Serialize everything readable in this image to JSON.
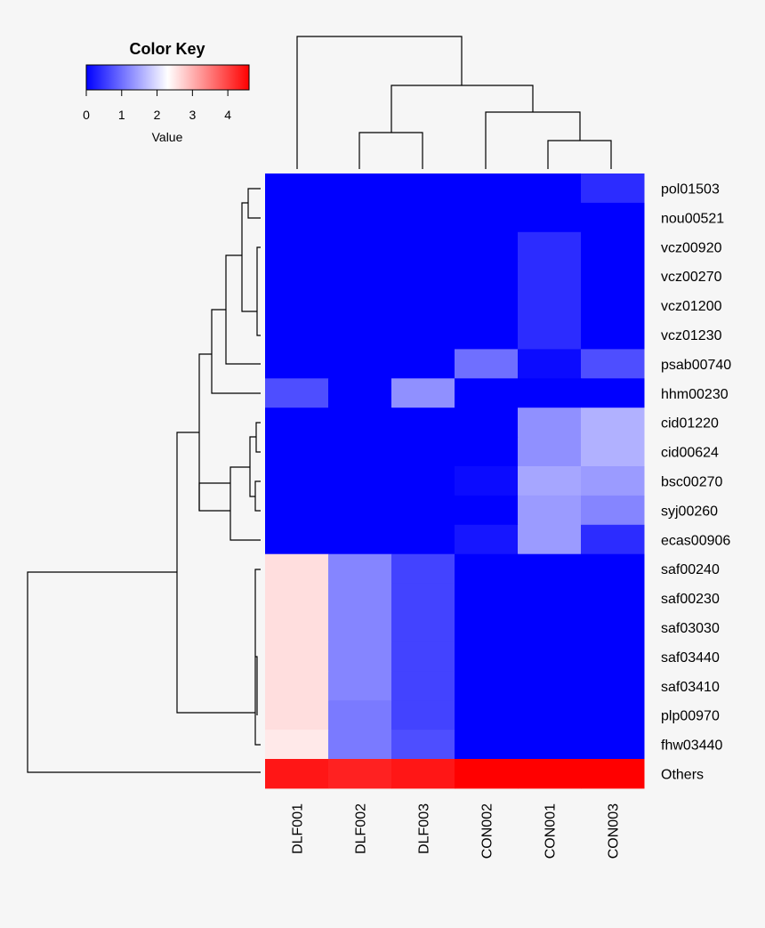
{
  "chart_data": {
    "type": "heatmap",
    "title": "",
    "color_key": {
      "title": "Color Key",
      "xlabel": "Value",
      "ticks": [
        0,
        1,
        2,
        3,
        4
      ],
      "range": [
        0,
        4.6
      ],
      "low_color": "#0000ff",
      "mid_color": "#ffffff",
      "high_color": "#ff0000"
    },
    "columns": [
      "DLF001",
      "DLF002",
      "DLF003",
      "CON002",
      "CON001",
      "CON003"
    ],
    "rows": [
      "pol01503",
      "nou00521",
      "vcz00920",
      "vcz00270",
      "vcz01200",
      "vcz01230",
      "psab00740",
      "hhm00230",
      "cid01220",
      "cid00624",
      "bsc00270",
      "syj00260",
      "ecas00906",
      "saf00240",
      "saf00230",
      "saf03030",
      "saf03440",
      "saf03410",
      "plp00970",
      "fhw03440",
      "Others"
    ],
    "values": [
      [
        0,
        0,
        0,
        0,
        0,
        0.4
      ],
      [
        0,
        0,
        0,
        0,
        0,
        0
      ],
      [
        0,
        0,
        0,
        0,
        0.4,
        0
      ],
      [
        0,
        0,
        0,
        0,
        0.4,
        0
      ],
      [
        0,
        0,
        0,
        0,
        0.4,
        0
      ],
      [
        0,
        0,
        0,
        0,
        0.4,
        0
      ],
      [
        0,
        0,
        0,
        1.0,
        0.1,
        0.7
      ],
      [
        0.7,
        0,
        1.3,
        0,
        0,
        0
      ],
      [
        0,
        0,
        0,
        0,
        1.3,
        1.6
      ],
      [
        0,
        0,
        0,
        0,
        1.3,
        1.6
      ],
      [
        0,
        0,
        0,
        0.1,
        1.5,
        1.4
      ],
      [
        0,
        0,
        0,
        0,
        1.4,
        1.2
      ],
      [
        0,
        0,
        0,
        0.2,
        1.4,
        0.4
      ],
      [
        2.6,
        1.2,
        0.6,
        0,
        0,
        0
      ],
      [
        2.6,
        1.2,
        0.6,
        0,
        0,
        0
      ],
      [
        2.6,
        1.2,
        0.6,
        0,
        0,
        0
      ],
      [
        2.6,
        1.2,
        0.6,
        0,
        0,
        0
      ],
      [
        2.6,
        1.2,
        0.6,
        0,
        0,
        0
      ],
      [
        2.6,
        1.1,
        0.6,
        0,
        0,
        0
      ],
      [
        2.5,
        1.1,
        0.7,
        0,
        0,
        0
      ],
      [
        4.4,
        4.3,
        4.4,
        4.6,
        4.6,
        4.6
      ]
    ]
  }
}
